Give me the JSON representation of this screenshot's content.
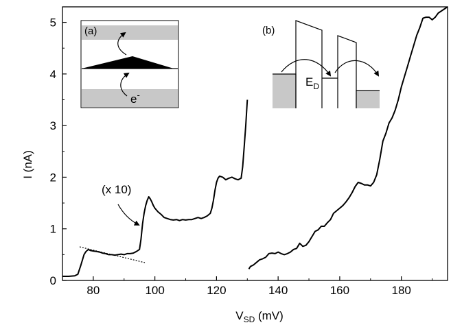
{
  "chart_data": {
    "type": "line",
    "xlabel_main": "V",
    "xlabel_sub": "SD",
    "xlabel_unit": " (mV)",
    "ylabel": "I (nA)",
    "xlim": [
      70,
      195
    ],
    "ylim": [
      0,
      5.3
    ],
    "xticks": [
      80,
      100,
      120,
      140,
      160,
      180
    ],
    "yticks": [
      0,
      1,
      2,
      3,
      4,
      5
    ],
    "series": [
      {
        "x": [
          70,
          72,
          74,
          75,
          76,
          77,
          77.5,
          78,
          78.5,
          79,
          80,
          81,
          82,
          83,
          84,
          85,
          86,
          87,
          88,
          89,
          90,
          91,
          92,
          93,
          94,
          95,
          95.5,
          96,
          96.5,
          97,
          97.5,
          98,
          98.5,
          99,
          99.5,
          100,
          101,
          102,
          103,
          104,
          105,
          106,
          107,
          108,
          109,
          110,
          111,
          112,
          113,
          114,
          115,
          116,
          117,
          118,
          118.5,
          119,
          119.5,
          120,
          120.5,
          121,
          122,
          123,
          124,
          125,
          126,
          127,
          128,
          128.5,
          129,
          129.5,
          130
        ],
        "y": [
          0.08,
          0.08,
          0.09,
          0.12,
          0.3,
          0.5,
          0.55,
          0.58,
          0.6,
          0.58,
          0.57,
          0.56,
          0.55,
          0.53,
          0.52,
          0.5,
          0.5,
          0.49,
          0.5,
          0.51,
          0.5,
          0.52,
          0.52,
          0.53,
          0.56,
          0.6,
          0.8,
          1.1,
          1.3,
          1.45,
          1.55,
          1.62,
          1.58,
          1.52,
          1.45,
          1.4,
          1.33,
          1.28,
          1.22,
          1.2,
          1.18,
          1.17,
          1.18,
          1.16,
          1.18,
          1.17,
          1.18,
          1.18,
          1.2,
          1.22,
          1.2,
          1.22,
          1.25,
          1.3,
          1.4,
          1.55,
          1.75,
          1.9,
          1.98,
          2.02,
          2.0,
          1.95,
          1.98,
          2.0,
          1.97,
          1.95,
          1.98,
          2.2,
          2.6,
          3.0,
          3.5
        ]
      },
      {
        "x": [
          130.5,
          131,
          132,
          133,
          134,
          135,
          136,
          137,
          138,
          139,
          140,
          141,
          142,
          143,
          144,
          145,
          146,
          147,
          148,
          149,
          150,
          151,
          152,
          153,
          154,
          155,
          156,
          157,
          158,
          159,
          160,
          161,
          162,
          163,
          164,
          165,
          166,
          167,
          168,
          169,
          170,
          171,
          172,
          173,
          174,
          175,
          176,
          177,
          178,
          179,
          180,
          181,
          182,
          183,
          184,
          185,
          186,
          187,
          188,
          189,
          190,
          191,
          192,
          193,
          194,
          195
        ],
        "y": [
          0.22,
          0.27,
          0.3,
          0.35,
          0.4,
          0.42,
          0.45,
          0.52,
          0.53,
          0.52,
          0.55,
          0.52,
          0.5,
          0.52,
          0.55,
          0.6,
          0.62,
          0.72,
          0.66,
          0.68,
          0.75,
          0.85,
          0.95,
          0.98,
          1.05,
          1.05,
          1.12,
          1.18,
          1.3,
          1.35,
          1.4,
          1.45,
          1.52,
          1.6,
          1.7,
          1.82,
          1.9,
          1.88,
          1.85,
          1.85,
          1.83,
          1.9,
          2.05,
          2.35,
          2.7,
          2.85,
          3.05,
          3.15,
          3.3,
          3.5,
          3.75,
          3.95,
          4.15,
          4.35,
          4.55,
          4.75,
          4.9,
          5.08,
          5.1,
          5.1,
          5.05,
          5.1,
          5.18,
          5.22,
          5.26,
          5.3
        ]
      }
    ],
    "annotations": {
      "scale_note": "(x 10)",
      "inset_a_label": "(a)",
      "inset_a_electron": "e",
      "inset_a_electron_sup": "-",
      "inset_b_label": "(b)",
      "inset_b_level": "E",
      "inset_b_level_sub": "D"
    }
  }
}
